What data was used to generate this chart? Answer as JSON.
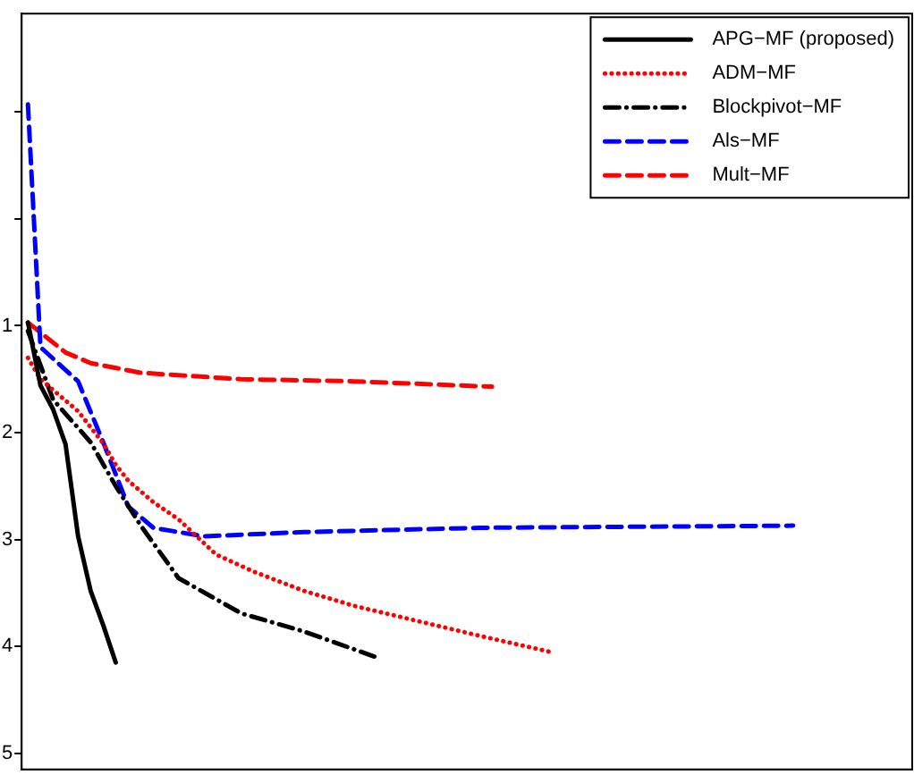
{
  "chart_data": {
    "type": "line",
    "grid": false,
    "legend": "top right",
    "marker": "none",
    "tick_labels": "y",
    "categories": [
      null,
      null,
      null,
      null,
      null,
      null,
      null,
      null,
      null,
      null,
      null,
      null,
      null,
      null,
      null,
      null,
      null,
      null,
      null,
      null,
      null,
      null,
      null,
      null,
      null,
      null,
      null,
      null,
      null,
      null,
      null,
      null,
      null,
      null,
      null,
      null,
      null,
      null,
      null,
      null,
      null,
      null,
      null,
      null,
      null,
      null,
      null,
      null,
      null,
      null,
      null,
      null,
      null,
      null,
      null,
      null,
      null,
      null,
      null,
      null,
      null,
      null,
      null,
      null,
      null,
      null,
      null,
      null,
      null,
      null,
      null
    ],
    "ylim": [
      5.15,
      -1.92
    ],
    "yticks": [
      {
        "value": -1,
        "label": null
      },
      {
        "value": 0,
        "label": null
      },
      1,
      2,
      3,
      4,
      5
    ],
    "series": [
      {
        "name": "APG−MF (proposed)",
        "color": "#000000",
        "line_style": "solid",
        "values": [
          0.97,
          1.56,
          1.78,
          2.11,
          2.97,
          3.48,
          3.8,
          4.15,
          null,
          null,
          null,
          null,
          null,
          null,
          null,
          null,
          null,
          null,
          null,
          null,
          null,
          null,
          null,
          null,
          null,
          null,
          null,
          null,
          null,
          null,
          null,
          null,
          null,
          null,
          null,
          null,
          null,
          null,
          null,
          null,
          null,
          null,
          null,
          null,
          null,
          null,
          null,
          null,
          null,
          null,
          null,
          null,
          null,
          null,
          null,
          null,
          null,
          null,
          null,
          null,
          null,
          null,
          null,
          null,
          null,
          null,
          null,
          null,
          null,
          null,
          null
        ]
      },
      {
        "name": "ADM−MF",
        "color": "#ff0000",
        "line_style": "dotted",
        "values": [
          1.3,
          1.5,
          1.6,
          1.7,
          1.8,
          1.95,
          2.1,
          2.3,
          2.45,
          2.55,
          2.65,
          null,
          2.81,
          null,
          null,
          3.14,
          null,
          null,
          3.3,
          null,
          null,
          null,
          3.48,
          null,
          null,
          null,
          3.62,
          null,
          null,
          null,
          null,
          3.76,
          null,
          null,
          null,
          null,
          3.9,
          null,
          null,
          null,
          null,
          null,
          4.06,
          null,
          null,
          null,
          null,
          null,
          null,
          null,
          null,
          null,
          null,
          null,
          null,
          null,
          null,
          null,
          null,
          null,
          null,
          null,
          null,
          null,
          null,
          null,
          null,
          null,
          null,
          null,
          null
        ]
      },
      {
        "name": "Blockpivot−MF",
        "color": "#000000",
        "line_style": "dashdot",
        "values": [
          1.05,
          null,
          1.69,
          null,
          null,
          2.09,
          null,
          2.5,
          null,
          2.87,
          null,
          null,
          3.36,
          null,
          null,
          null,
          null,
          3.69,
          null,
          null,
          null,
          null,
          3.86,
          null,
          null,
          null,
          null,
          null,
          4.11,
          null,
          null,
          null,
          null,
          null,
          null,
          null,
          null,
          null,
          null,
          null,
          null,
          null,
          null,
          null,
          null,
          null,
          null,
          null,
          null,
          null,
          null,
          null,
          null,
          null,
          null,
          null,
          null,
          null,
          null,
          null,
          null,
          null,
          null,
          null,
          null,
          null,
          null,
          null,
          null,
          null,
          null
        ]
      },
      {
        "name": "Als−MF",
        "color": "#0000ff",
        "line_style": "dashed",
        "values": [
          -1.07,
          1.2,
          null,
          null,
          1.52,
          null,
          2.09,
          null,
          2.69,
          null,
          2.89,
          null,
          null,
          null,
          2.97,
          null,
          null,
          null,
          null,
          null,
          null,
          null,
          2.93,
          null,
          null,
          null,
          null,
          null,
          null,
          null,
          null,
          null,
          null,
          null,
          null,
          null,
          2.89,
          null,
          null,
          null,
          null,
          null,
          null,
          null,
          null,
          null,
          null,
          null,
          null,
          null,
          null,
          null,
          null,
          null,
          null,
          null,
          null,
          null,
          null,
          null,
          null,
          2.87,
          null,
          null,
          null,
          null,
          null,
          null,
          null,
          null,
          null
        ]
      },
      {
        "name": "Mult−MF",
        "color": "#ff0000",
        "line_style": "dashed",
        "values": [
          0.97,
          null,
          null,
          1.25,
          null,
          1.35,
          null,
          null,
          null,
          1.44,
          null,
          null,
          null,
          null,
          null,
          null,
          null,
          1.5,
          null,
          null,
          null,
          null,
          null,
          null,
          null,
          null,
          1.52,
          null,
          null,
          null,
          null,
          null,
          null,
          null,
          null,
          null,
          null,
          1.57,
          null,
          null,
          null,
          null,
          null,
          null,
          null,
          null,
          null,
          null,
          null,
          null,
          null,
          null,
          null,
          null,
          null,
          null,
          null,
          null,
          null,
          null,
          null,
          null,
          null,
          null,
          null,
          null,
          null,
          null,
          null,
          null,
          null
        ]
      }
    ]
  }
}
